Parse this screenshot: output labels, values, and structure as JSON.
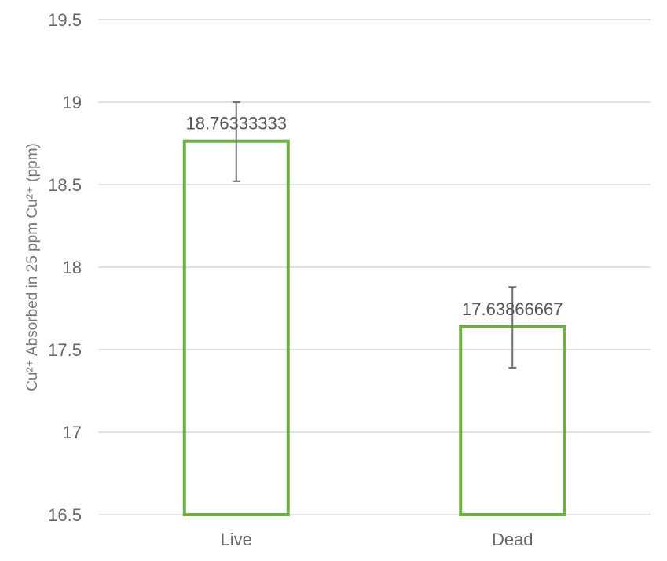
{
  "chart_data": {
    "type": "bar",
    "categories": [
      "Live",
      "Dead"
    ],
    "values": [
      18.76333333,
      17.63866667
    ],
    "data_labels": [
      "18.76333333",
      "17.63866667"
    ],
    "error_upper": [
      19.0,
      17.88
    ],
    "error_lower": [
      18.52,
      17.39
    ],
    "ylabel": "Cu²⁺ Absorbed in 25 ppm Cu²⁺ (ppm)",
    "xlabel": "",
    "ylim": [
      16.5,
      19.5
    ],
    "yticks": [
      16.5,
      17,
      17.5,
      18,
      18.5,
      19,
      19.5
    ],
    "ytick_labels": [
      "16.5",
      "17",
      "17.5",
      "18",
      "18.5",
      "19",
      "19.5"
    ],
    "grid": true,
    "legend": "none",
    "bar_style": "outline",
    "bar_color": "#70ad47"
  }
}
